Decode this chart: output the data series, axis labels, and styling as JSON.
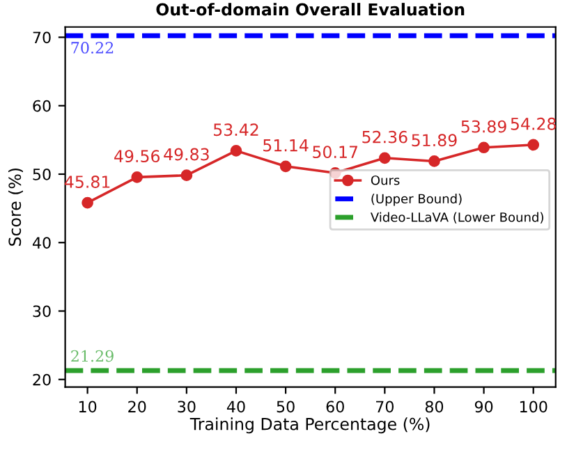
{
  "chart_data": {
    "type": "line",
    "title": "Out-of-domain Overall Evaluation",
    "xlabel": "Training Data Percentage (%)",
    "ylabel": "Score (%)",
    "x": [
      10,
      20,
      30,
      40,
      50,
      60,
      70,
      80,
      90,
      100
    ],
    "series": [
      {
        "name": "Ours",
        "color": "#d62728",
        "values": [
          45.81,
          49.56,
          49.83,
          53.42,
          51.14,
          50.17,
          52.36,
          51.89,
          53.89,
          54.28
        ]
      }
    ],
    "ref_lines": [
      {
        "axis": "y",
        "value": 70.22,
        "label": "(Upper Bound)",
        "color": "#0000ff",
        "line_style": "dashed"
      },
      {
        "axis": "y",
        "value": 21.29,
        "label": "Video-LLaVA (Lower Bound)",
        "color": "#2ca02c",
        "line_style": "dashed"
      }
    ],
    "annotations": [
      {
        "text": "70.22",
        "x": 6.5,
        "y": 70.22
      },
      {
        "text": "21.29",
        "x": 6.5,
        "y": 21.29
      }
    ],
    "data_labels": true,
    "marker": "circle",
    "line_style": "solid",
    "legend": "right",
    "grid": false,
    "xlim": [
      5.5,
      104.5
    ],
    "ylim": [
      18.9,
      71.5
    ],
    "xticks": [
      10,
      20,
      30,
      40,
      50,
      60,
      70,
      80,
      90,
      100
    ],
    "yticks": [
      20,
      30,
      40,
      50,
      60,
      70
    ]
  }
}
